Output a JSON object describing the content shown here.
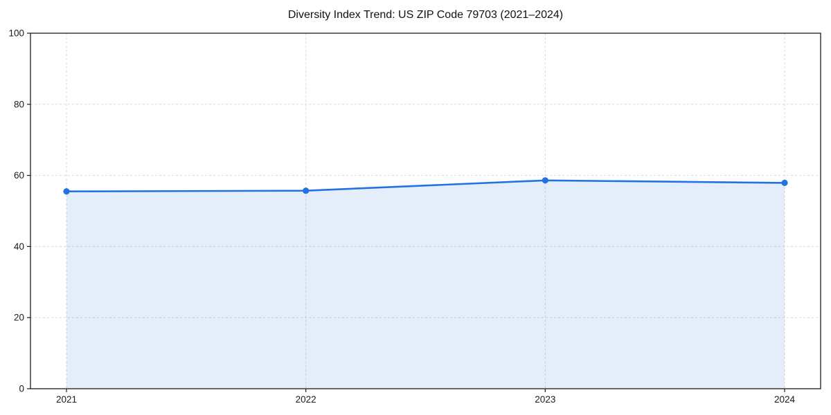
{
  "chart_data": {
    "type": "area",
    "title": "Diversity Index Trend: US ZIP Code 79703 (2021–2024)",
    "categories": [
      "2021",
      "2022",
      "2023",
      "2024"
    ],
    "series": [
      {
        "name": "Diversity Index",
        "values": [
          55.5,
          55.7,
          58.6,
          57.9
        ]
      }
    ],
    "xlabel": "",
    "ylabel": "",
    "ylim": [
      0,
      100
    ],
    "yticks": [
      0,
      20,
      40,
      60,
      80,
      100
    ],
    "grid": "dashed",
    "legend": "none",
    "marker": "circle",
    "colors": {
      "line": "#2272e0",
      "marker": "#2272e0",
      "fill": "#2272e0",
      "fill_opacity": 0.12,
      "gridline": "#d8d8d8",
      "spine": "#1a1a1a",
      "text": "#1a1a1a"
    }
  }
}
